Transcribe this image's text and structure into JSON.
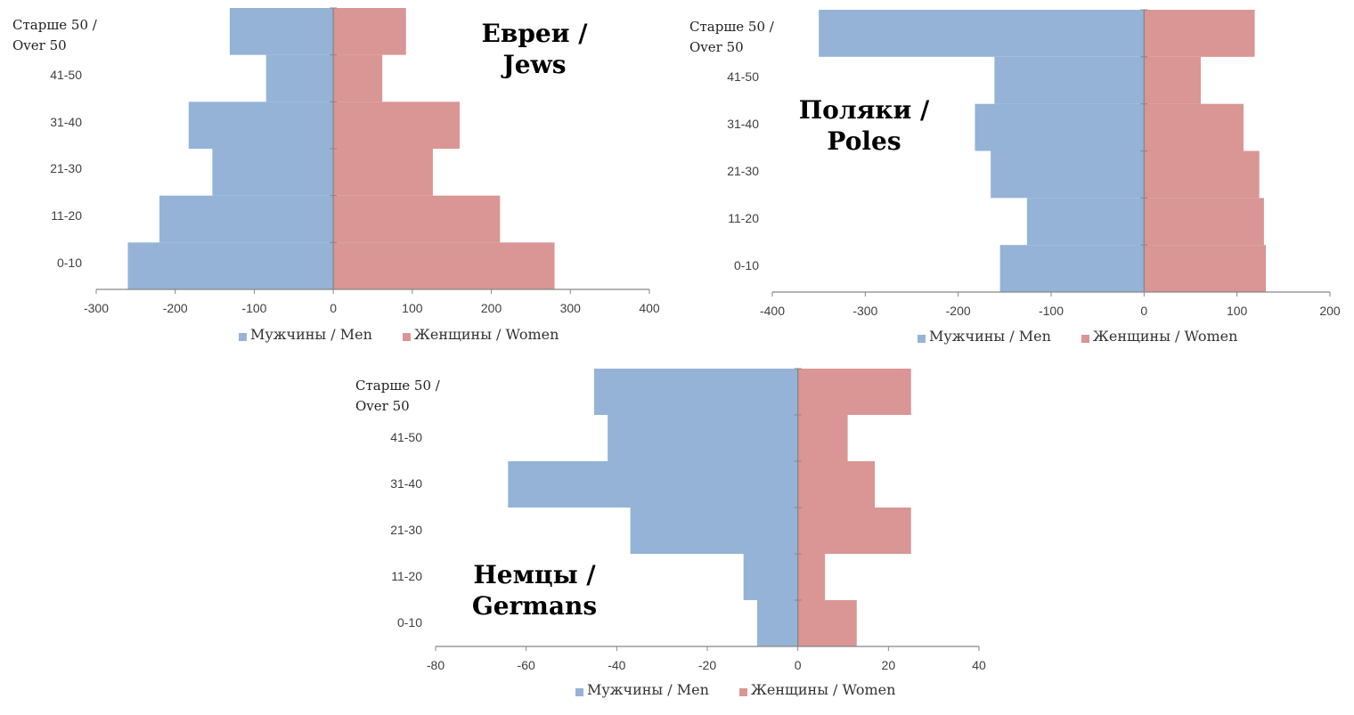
{
  "chart_data": [
    {
      "type": "bar",
      "orientation": "horizontal-pyramid",
      "title": "Евреи / Jews",
      "categories": [
        "0-10",
        "11-20",
        "21-30",
        "31-40",
        "41-50",
        "Старше 50 / Over 50"
      ],
      "series": [
        {
          "name": "Мужчины / Men",
          "color": "#95b3d7",
          "values": [
            -260,
            -220,
            -153,
            -183,
            -85,
            -131
          ]
        },
        {
          "name": "Женщины / Women",
          "color": "#d99694",
          "values": [
            280,
            211,
            126,
            160,
            62,
            92
          ]
        }
      ],
      "xlim": [
        -300,
        400
      ],
      "xticks": [
        -300,
        -200,
        -100,
        0,
        100,
        200,
        300,
        400
      ],
      "legend": "bottom"
    },
    {
      "type": "bar",
      "orientation": "horizontal-pyramid",
      "title": "Поляки / Poles",
      "categories": [
        "0-10",
        "11-20",
        "21-30",
        "31-40",
        "41-50",
        "Старше 50 / Over 50"
      ],
      "series": [
        {
          "name": "Мужчины / Men",
          "color": "#95b3d7",
          "values": [
            -155,
            -126,
            -165,
            -182,
            -161,
            -350
          ]
        },
        {
          "name": "Женщины / Women",
          "color": "#d99694",
          "values": [
            131,
            129,
            124,
            107,
            61,
            119
          ]
        }
      ],
      "xlim": [
        -400,
        200
      ],
      "xticks": [
        -400,
        -300,
        -200,
        -100,
        0,
        100,
        200
      ],
      "legend": "bottom"
    },
    {
      "type": "bar",
      "orientation": "horizontal-pyramid",
      "title": "Немцы / Germans",
      "categories": [
        "0-10",
        "11-20",
        "21-30",
        "31-40",
        "41-50",
        "Старше 50 / Over 50"
      ],
      "series": [
        {
          "name": "Мужчины / Men",
          "color": "#95b3d7",
          "values": [
            -9,
            -12,
            -37,
            -64,
            -42,
            -45
          ]
        },
        {
          "name": "Женщины / Women",
          "color": "#d99694",
          "values": [
            13,
            6,
            25,
            17,
            11,
            25
          ]
        }
      ],
      "xlim": [
        -80,
        40
      ],
      "xticks": [
        -80,
        -60,
        -40,
        -20,
        0,
        20,
        40
      ],
      "legend": "bottom"
    }
  ]
}
